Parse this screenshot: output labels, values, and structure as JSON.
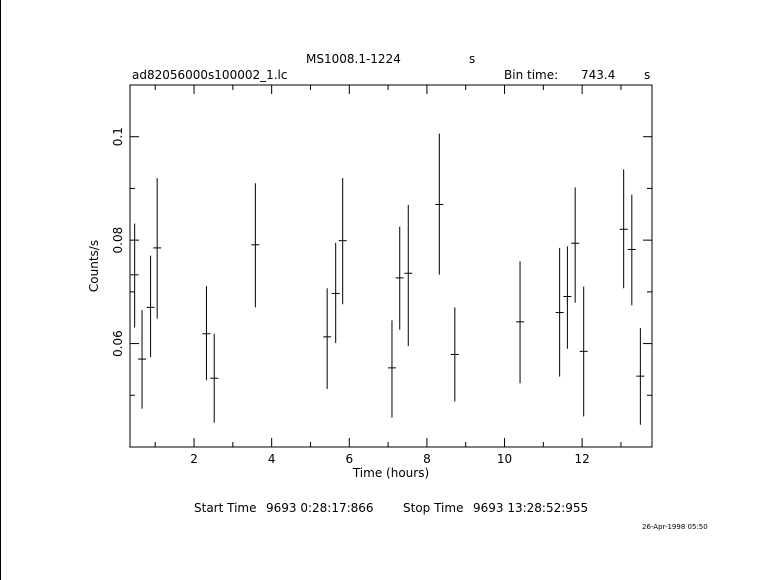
{
  "header": {
    "object": "MS1008.1-1224",
    "object_unit": "s",
    "file": "ad82056000s100002_1.lc",
    "bin_label": "Bin time:",
    "bin_value": "743.4",
    "bin_unit": "s"
  },
  "footer": {
    "start_label": "Start Time",
    "start_value": "9693  0:28:17:866",
    "stop_label": "Stop Time",
    "stop_value": "9693 13:28:52:955",
    "stamp": "26-Apr-1998 05:50"
  },
  "chart_data": {
    "type": "scatter",
    "xlabel": "Time (hours)",
    "ylabel": "Counts/s",
    "xlim": [
      0.35,
      13.8
    ],
    "ylim": [
      0.04,
      0.11
    ],
    "xticks": [
      2,
      4,
      6,
      8,
      10,
      12
    ],
    "yticks": [
      0.06,
      0.08,
      0.1
    ],
    "xtick_labels": [
      "2",
      "4",
      "6",
      "8",
      "10",
      "12"
    ],
    "ytick_labels": [
      "0.06",
      "0.08",
      "0.1"
    ],
    "color": "#000000",
    "points": [
      {
        "x": 0.47,
        "y": 0.0733,
        "ylo": 0.0631,
        "yhi": 0.0832
      },
      {
        "x": 0.66,
        "y": 0.057,
        "ylo": 0.0474,
        "yhi": 0.0665
      },
      {
        "x": 0.88,
        "y": 0.067,
        "ylo": 0.0574,
        "yhi": 0.077
      },
      {
        "x": 1.05,
        "y": 0.0785,
        "ylo": 0.0648,
        "yhi": 0.092
      },
      {
        "x": 2.32,
        "y": 0.0619,
        "ylo": 0.0529,
        "yhi": 0.0711
      },
      {
        "x": 2.52,
        "y": 0.0533,
        "ylo": 0.0447,
        "yhi": 0.0619
      },
      {
        "x": 3.58,
        "y": 0.0791,
        "ylo": 0.067,
        "yhi": 0.091
      },
      {
        "x": 5.43,
        "y": 0.0613,
        "ylo": 0.0512,
        "yhi": 0.0707
      },
      {
        "x": 5.65,
        "y": 0.0697,
        "ylo": 0.0601,
        "yhi": 0.0795
      },
      {
        "x": 5.83,
        "y": 0.0799,
        "ylo": 0.0676,
        "yhi": 0.092
      },
      {
        "x": 7.1,
        "y": 0.0553,
        "ylo": 0.0457,
        "yhi": 0.0645
      },
      {
        "x": 7.3,
        "y": 0.0727,
        "ylo": 0.0627,
        "yhi": 0.0826
      },
      {
        "x": 7.52,
        "y": 0.0736,
        "ylo": 0.0595,
        "yhi": 0.0868
      },
      {
        "x": 8.32,
        "y": 0.0869,
        "ylo": 0.0733,
        "yhi": 0.1006
      },
      {
        "x": 8.72,
        "y": 0.0579,
        "ylo": 0.0488,
        "yhi": 0.067
      },
      {
        "x": 10.4,
        "y": 0.0642,
        "ylo": 0.0523,
        "yhi": 0.0759
      },
      {
        "x": 11.42,
        "y": 0.066,
        "ylo": 0.0536,
        "yhi": 0.0785
      },
      {
        "x": 11.62,
        "y": 0.0691,
        "ylo": 0.059,
        "yhi": 0.0788
      },
      {
        "x": 11.82,
        "y": 0.0794,
        "ylo": 0.0679,
        "yhi": 0.0902
      },
      {
        "x": 12.04,
        "y": 0.0585,
        "ylo": 0.0459,
        "yhi": 0.071
      },
      {
        "x": 13.07,
        "y": 0.0821,
        "ylo": 0.0707,
        "yhi": 0.0937
      },
      {
        "x": 13.28,
        "y": 0.0782,
        "ylo": 0.0674,
        "yhi": 0.0888
      },
      {
        "x": 13.5,
        "y": 0.0537,
        "ylo": 0.0443,
        "yhi": 0.063
      }
    ]
  }
}
